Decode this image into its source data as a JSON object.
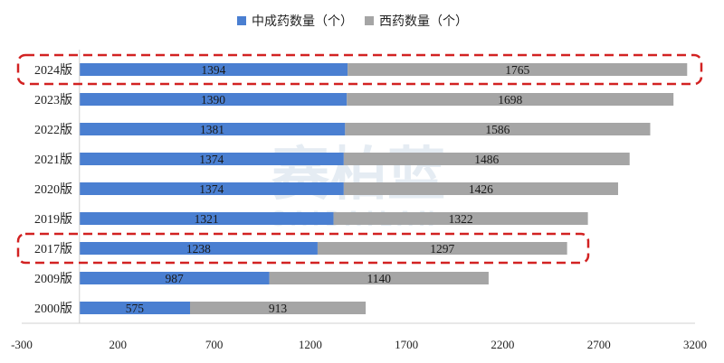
{
  "chart_data": {
    "type": "bar",
    "orientation": "horizontal",
    "stacked": true,
    "categories": [
      "2024版",
      "2023版",
      "2022版",
      "2021版",
      "2020版",
      "2019版",
      "2017版",
      "2009版",
      "2000版"
    ],
    "series": [
      {
        "name": "中成药数量（个）",
        "color": "#4a7fd1",
        "values": [
          1394,
          1390,
          1381,
          1374,
          1374,
          1321,
          1238,
          987,
          575
        ]
      },
      {
        "name": "西药数量（个）",
        "color": "#a5a5a5",
        "values": [
          1765,
          1698,
          1586,
          1486,
          1426,
          1322,
          1297,
          1140,
          913
        ]
      }
    ],
    "xlim": [
      -300,
      3200
    ],
    "xticks": [
      "-300",
      "200",
      "700",
      "1200",
      "1700",
      "2200",
      "2700",
      "3200"
    ],
    "legend_position": "top",
    "highlighted_categories": [
      "2024版",
      "2017版"
    ],
    "highlight_color": "#d22222"
  },
  "watermark": {
    "text": "赛柏蓝",
    "subtext": "SAIBAILAN"
  }
}
